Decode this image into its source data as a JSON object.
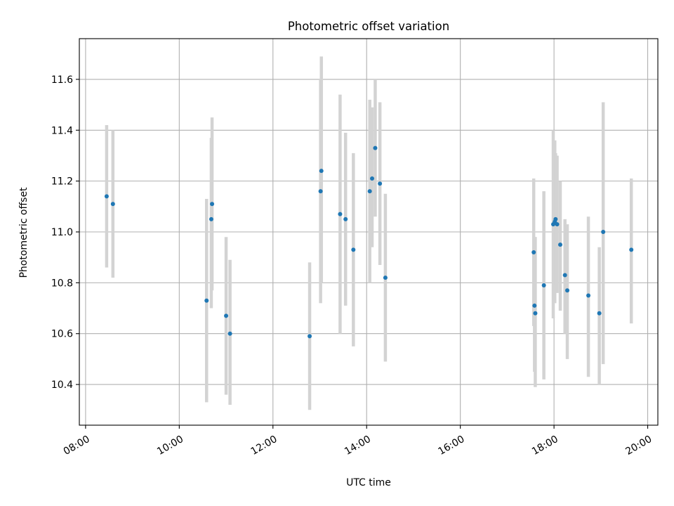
{
  "chart_data": {
    "type": "scatter",
    "title": "Photometric offset variation",
    "xlabel": "UTC time",
    "ylabel": "Photometric offset",
    "xlim": [
      "07:52",
      "20:13"
    ],
    "ylim": [
      10.24,
      11.76
    ],
    "xticks": [
      "08:00",
      "10:00",
      "12:00",
      "14:00",
      "16:00",
      "18:00",
      "20:00"
    ],
    "yticks": [
      "10.4",
      "10.6",
      "10.8",
      "11.0",
      "11.2",
      "11.4",
      "11.6"
    ],
    "grid": true,
    "colors": {
      "point": "#1f77b4",
      "errorbar": "#d3d3d3",
      "grid": "#b0b0b0"
    },
    "series": [
      {
        "points": [
          {
            "x": "08:27",
            "y": 11.14,
            "ylow": 10.86,
            "yhigh": 11.42
          },
          {
            "x": "08:35",
            "y": 11.11,
            "ylow": 10.82,
            "yhigh": 11.4
          },
          {
            "x": "10:35",
            "y": 10.73,
            "ylow": 10.33,
            "yhigh": 11.13
          },
          {
            "x": "10:41",
            "y": 11.05,
            "ylow": 10.7,
            "yhigh": 11.37
          },
          {
            "x": "10:42",
            "y": 11.11,
            "ylow": 10.77,
            "yhigh": 11.45
          },
          {
            "x": "11:00",
            "y": 10.67,
            "ylow": 10.36,
            "yhigh": 10.98
          },
          {
            "x": "11:05",
            "y": 10.6,
            "ylow": 10.32,
            "yhigh": 10.89
          },
          {
            "x": "12:47",
            "y": 10.59,
            "ylow": 10.3,
            "yhigh": 10.88
          },
          {
            "x": "13:01",
            "y": 11.16,
            "ylow": 10.72,
            "yhigh": 11.6
          },
          {
            "x": "13:02",
            "y": 11.24,
            "ylow": 10.8,
            "yhigh": 11.69
          },
          {
            "x": "13:26",
            "y": 11.07,
            "ylow": 10.6,
            "yhigh": 11.54
          },
          {
            "x": "13:33",
            "y": 11.05,
            "ylow": 10.71,
            "yhigh": 11.39
          },
          {
            "x": "13:43",
            "y": 10.93,
            "ylow": 10.55,
            "yhigh": 11.31
          },
          {
            "x": "14:04",
            "y": 11.16,
            "ylow": 10.8,
            "yhigh": 11.52
          },
          {
            "x": "14:07",
            "y": 11.21,
            "ylow": 10.94,
            "yhigh": 11.49
          },
          {
            "x": "14:11",
            "y": 11.33,
            "ylow": 11.06,
            "yhigh": 11.6
          },
          {
            "x": "14:17",
            "y": 11.19,
            "ylow": 10.87,
            "yhigh": 11.51
          },
          {
            "x": "14:24",
            "y": 10.82,
            "ylow": 10.49,
            "yhigh": 11.15
          },
          {
            "x": "17:34",
            "y": 10.92,
            "ylow": 10.63,
            "yhigh": 11.21
          },
          {
            "x": "17:35",
            "y": 10.71,
            "ylow": 10.45,
            "yhigh": 10.98
          },
          {
            "x": "17:36",
            "y": 10.68,
            "ylow": 10.39,
            "yhigh": 10.98
          },
          {
            "x": "17:47",
            "y": 10.79,
            "ylow": 10.42,
            "yhigh": 11.16
          },
          {
            "x": "17:59",
            "y": 11.03,
            "ylow": 10.66,
            "yhigh": 11.4
          },
          {
            "x": "18:01",
            "y": 11.04,
            "ylow": 10.72,
            "yhigh": 11.36
          },
          {
            "x": "18:02",
            "y": 11.05,
            "ylow": 10.79,
            "yhigh": 11.31
          },
          {
            "x": "18:04",
            "y": 11.03,
            "ylow": 10.76,
            "yhigh": 11.3
          },
          {
            "x": "18:08",
            "y": 10.95,
            "ylow": 10.69,
            "yhigh": 11.2
          },
          {
            "x": "18:14",
            "y": 10.83,
            "ylow": 10.6,
            "yhigh": 11.05
          },
          {
            "x": "18:17",
            "y": 10.77,
            "ylow": 10.5,
            "yhigh": 11.03
          },
          {
            "x": "18:44",
            "y": 10.75,
            "ylow": 10.43,
            "yhigh": 11.06
          },
          {
            "x": "18:58",
            "y": 10.68,
            "ylow": 10.4,
            "yhigh": 10.94
          },
          {
            "x": "19:03",
            "y": 11.0,
            "ylow": 10.48,
            "yhigh": 11.51
          },
          {
            "x": "19:39",
            "y": 10.93,
            "ylow": 10.64,
            "yhigh": 11.21
          }
        ]
      }
    ]
  }
}
